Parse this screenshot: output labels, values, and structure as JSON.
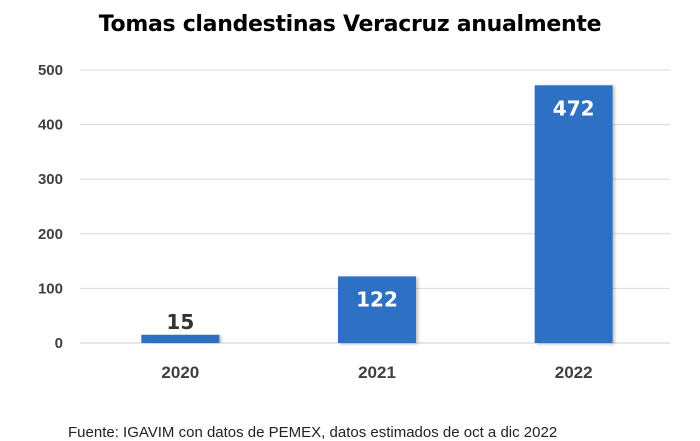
{
  "chart_data": {
    "type": "bar",
    "title": "Tomas clandestinas Veracruz anualmente",
    "categories": [
      "2020",
      "2021",
      "2022"
    ],
    "values": [
      15,
      122,
      472
    ],
    "data_labels": [
      "15",
      "122",
      "472"
    ],
    "y_ticks": [
      0,
      100,
      200,
      300,
      400,
      500
    ],
    "ylim": [
      0,
      500
    ],
    "xlabel": "",
    "ylabel": "",
    "grid": true,
    "legend": "none",
    "bar_color": "#2f6fc4",
    "label_inside_color": "#ffffff",
    "label_outside_color": "#333333"
  },
  "footer": {
    "source": "Fuente: IGAVIM con datos de PEMEX, datos estimados de oct a dic 2022"
  }
}
